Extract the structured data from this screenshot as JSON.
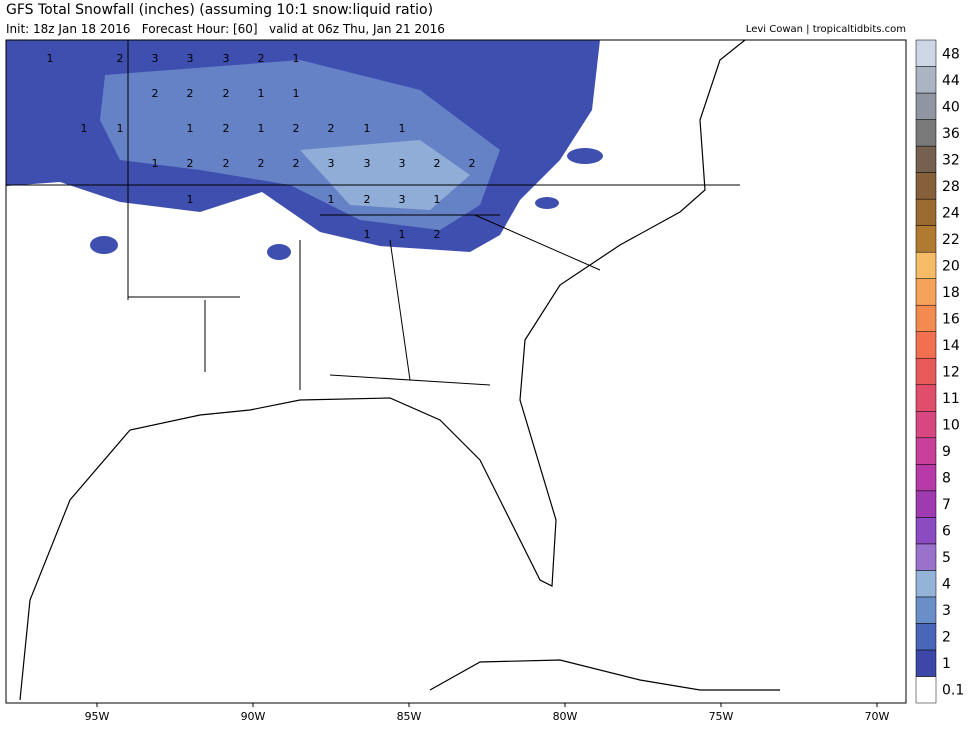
{
  "header": {
    "title": "GFS Total Snowfall (inches) (assuming 10:1 snow:liquid ratio)",
    "subtitle": "Init: 18z Jan 18 2016   Forecast Hour: [60]   valid at 06z Thu, Jan 21 2016",
    "credit": "Levi Cowan | tropicaltidbits.com"
  },
  "map": {
    "lon_labels": [
      "95W",
      "90W",
      "85W",
      "80W",
      "75W",
      "70W"
    ],
    "contour_labels": [
      "1",
      "2",
      "3",
      "3",
      "3",
      "2",
      "1",
      "2",
      "2",
      "2",
      "1",
      "1",
      "1",
      "1",
      "1",
      "2",
      "1",
      "2",
      "2",
      "1",
      "1",
      "1",
      "2",
      "2",
      "2",
      "2",
      "3",
      "3",
      "3",
      "2",
      "2",
      "1",
      "1",
      "2",
      "3",
      "1",
      "1",
      "1",
      "2"
    ]
  },
  "colorbar": {
    "levels": [
      "0.1",
      "1",
      "2",
      "3",
      "4",
      "5",
      "6",
      "7",
      "8",
      "9",
      "10",
      "11",
      "12",
      "14",
      "16",
      "18",
      "20",
      "22",
      "24",
      "28",
      "32",
      "36",
      "40",
      "44",
      "48"
    ],
    "colors": [
      "#ffffff",
      "#3b48a8",
      "#4a66b8",
      "#6a8fc8",
      "#93b4d8",
      "#9a72cc",
      "#8a4cc0",
      "#a03ab0",
      "#b83aa8",
      "#c8409a",
      "#d84880",
      "#e04e6c",
      "#e85a5a",
      "#f07050",
      "#f38a50",
      "#f5a25a",
      "#f6bb66",
      "#b07a30",
      "#9a6a30",
      "#85603a",
      "#766050",
      "#7a7a7a",
      "#8f96a2",
      "#aab4c2",
      "#ccd6e4"
    ]
  }
}
